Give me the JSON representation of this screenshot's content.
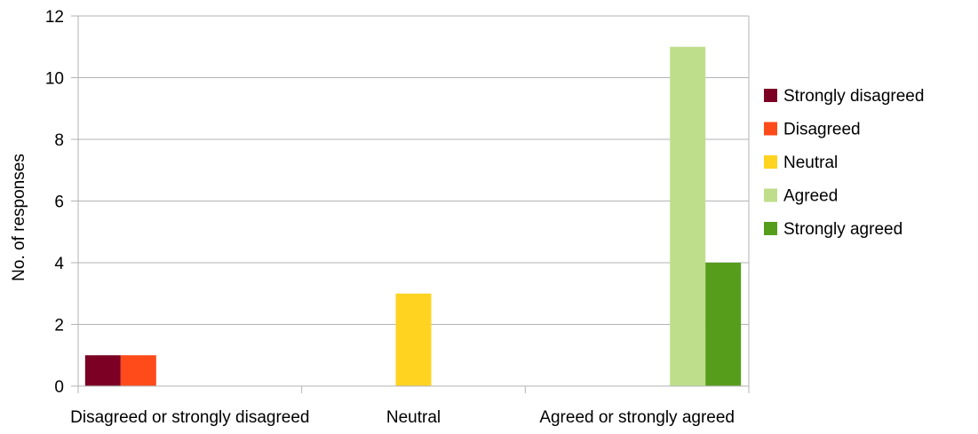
{
  "chart_data": {
    "type": "bar",
    "title": "",
    "xlabel": "",
    "ylabel": "No. of responses",
    "ylim": [
      0,
      12
    ],
    "yticks": [
      0,
      2,
      4,
      6,
      8,
      10,
      12
    ],
    "grid": true,
    "legend_position": "right",
    "categories": [
      "Disagreed or strongly disagreed",
      "Neutral",
      "Agreed or strongly agreed"
    ],
    "series": [
      {
        "name": "Strongly disagreed",
        "color": "#7b0024",
        "values": [
          1,
          0,
          0
        ]
      },
      {
        "name": "Disagreed",
        "color": "#ff4a1a",
        "values": [
          1,
          0,
          0
        ]
      },
      {
        "name": "Neutral",
        "color": "#ffd320",
        "values": [
          0,
          3,
          0
        ]
      },
      {
        "name": "Agreed",
        "color": "#bfde8b",
        "values": [
          0,
          0,
          11
        ]
      },
      {
        "name": "Strongly agreed",
        "color": "#579d1c",
        "values": [
          0,
          0,
          4
        ]
      }
    ]
  }
}
